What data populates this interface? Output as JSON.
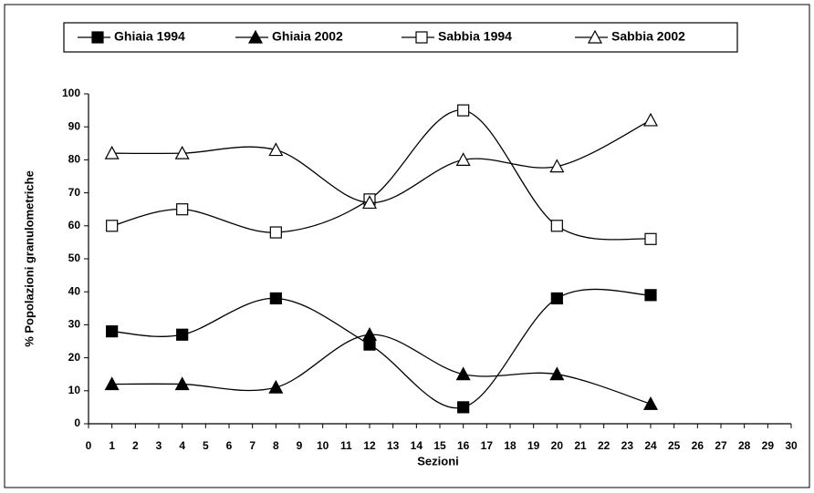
{
  "chart_data": {
    "type": "line",
    "title": null,
    "xlabel": "Sezioni",
    "ylabel": "% Popolazioni granulometriche",
    "x": [
      1,
      4,
      8,
      12,
      16,
      20,
      24
    ],
    "series": [
      {
        "name": "Ghiaia 1994",
        "color": "#000000",
        "marker": "square",
        "filled": true,
        "values": [
          28,
          27,
          38,
          24,
          5,
          38,
          39
        ]
      },
      {
        "name": "Ghiaia 2002",
        "color": "#000000",
        "marker": "triangle",
        "filled": true,
        "values": [
          12,
          12,
          11,
          27,
          15,
          15,
          6
        ]
      },
      {
        "name": "Sabbia 1994",
        "color": "#000000",
        "marker": "square",
        "filled": false,
        "values": [
          60,
          65,
          58,
          68,
          95,
          60,
          56
        ]
      },
      {
        "name": "Sabbia 2002",
        "color": "#000000",
        "marker": "triangle",
        "filled": false,
        "values": [
          82,
          82,
          83,
          67,
          80,
          78,
          92
        ]
      }
    ],
    "xlim": [
      0,
      30
    ],
    "xticks": [
      0,
      1,
      2,
      3,
      4,
      5,
      6,
      7,
      8,
      9,
      10,
      11,
      12,
      13,
      14,
      15,
      16,
      17,
      18,
      19,
      20,
      21,
      22,
      23,
      24,
      25,
      26,
      27,
      28,
      29,
      30
    ],
    "ylim": [
      0,
      100
    ],
    "yticks": [
      0,
      10,
      20,
      30,
      40,
      50,
      60,
      70,
      80,
      90,
      100
    ],
    "grid": false,
    "smooth": true,
    "legend": "top"
  }
}
